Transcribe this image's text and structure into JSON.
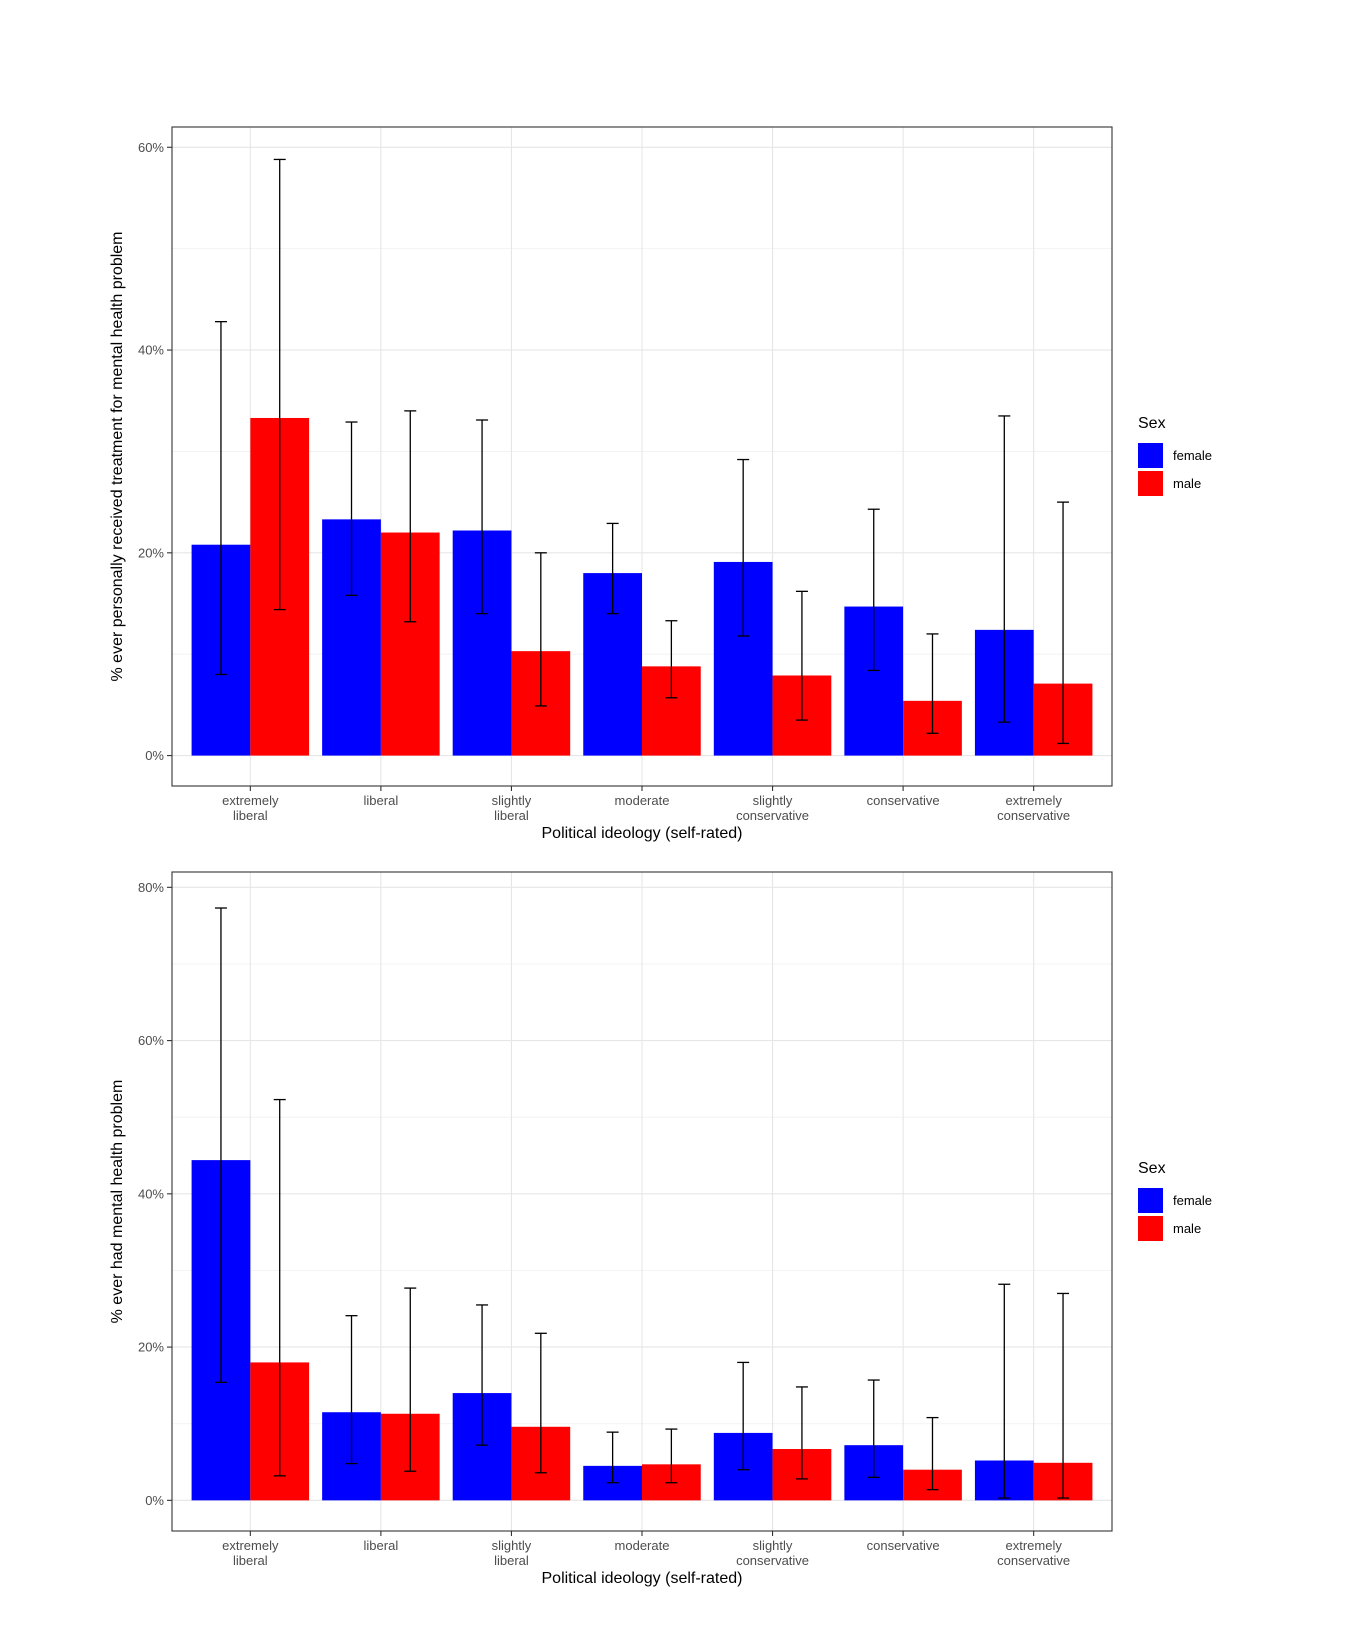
{
  "chart_data": [
    {
      "type": "bar",
      "title": "",
      "xlabel": "Political ideology (self-rated)",
      "ylabel": "% ever personally received treatment for mental health problem",
      "ylim": [
        -3,
        62
      ],
      "yticks": [
        0,
        20,
        40,
        60
      ],
      "ytick_labels": [
        "0%",
        "20%",
        "40%",
        "60%"
      ],
      "grid": true,
      "legend_position": "right",
      "legend_title": "Sex",
      "categories": [
        [
          "extremely",
          "liberal"
        ],
        [
          "liberal"
        ],
        [
          "slightly",
          "liberal"
        ],
        [
          "moderate"
        ],
        [
          "slightly",
          "conservative"
        ],
        [
          "conservative"
        ],
        [
          "extremely",
          "conservative"
        ]
      ],
      "series": [
        {
          "name": "female",
          "color": "#0000ff",
          "values": [
            20.8,
            23.3,
            22.2,
            18.0,
            19.1,
            14.7,
            12.4
          ],
          "lower": [
            8.0,
            15.8,
            14.0,
            14.0,
            11.8,
            8.4,
            3.3
          ],
          "upper": [
            42.8,
            32.9,
            33.1,
            22.9,
            29.2,
            24.3,
            33.5
          ]
        },
        {
          "name": "male",
          "color": "#ff0000",
          "values": [
            33.3,
            22.0,
            10.3,
            8.8,
            7.9,
            5.4,
            7.1
          ],
          "lower": [
            14.4,
            13.2,
            4.9,
            5.7,
            3.5,
            2.2,
            1.2
          ],
          "upper": [
            58.8,
            34.0,
            20.0,
            13.3,
            16.2,
            12.0,
            25.0
          ]
        }
      ]
    },
    {
      "type": "bar",
      "title": "",
      "xlabel": "Political ideology (self-rated)",
      "ylabel": "% ever had mental health problem",
      "ylim": [
        -4,
        82
      ],
      "yticks": [
        0,
        20,
        40,
        60,
        80
      ],
      "ytick_labels": [
        "0%",
        "20%",
        "40%",
        "60%",
        "80%"
      ],
      "grid": true,
      "legend_position": "right",
      "legend_title": "Sex",
      "categories": [
        [
          "extremely",
          "liberal"
        ],
        [
          "liberal"
        ],
        [
          "slightly",
          "liberal"
        ],
        [
          "moderate"
        ],
        [
          "slightly",
          "conservative"
        ],
        [
          "conservative"
        ],
        [
          "extremely",
          "conservative"
        ]
      ],
      "series": [
        {
          "name": "female",
          "color": "#0000ff",
          "values": [
            44.4,
            11.5,
            14.0,
            4.5,
            8.8,
            7.2,
            5.2
          ],
          "lower": [
            15.4,
            4.8,
            7.2,
            2.3,
            4.0,
            3.0,
            0.3
          ],
          "upper": [
            77.3,
            24.1,
            25.5,
            8.9,
            18.0,
            15.7,
            28.2
          ]
        },
        {
          "name": "male",
          "color": "#ff0000",
          "values": [
            18.0,
            11.3,
            9.6,
            4.7,
            6.7,
            4.0,
            4.9
          ],
          "lower": [
            3.2,
            3.8,
            3.6,
            2.3,
            2.8,
            1.4,
            0.3
          ],
          "upper": [
            52.3,
            27.7,
            21.8,
            9.3,
            14.8,
            10.8,
            27.0
          ]
        }
      ]
    }
  ]
}
